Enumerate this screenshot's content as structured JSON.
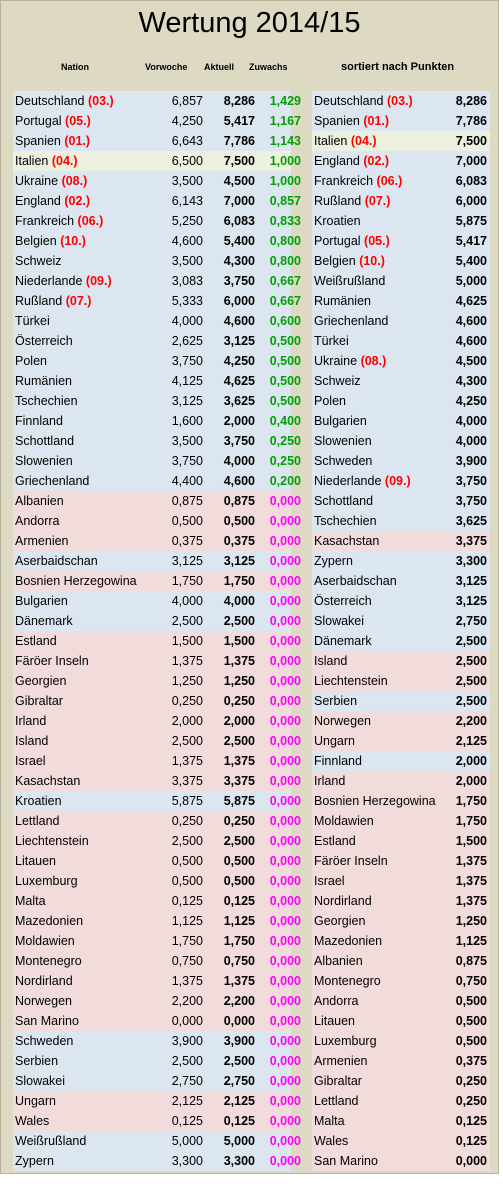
{
  "title": "Wertung 2014/15",
  "headers": {
    "nation": "Nation",
    "prev_week": "Vorwoche",
    "current": "Aktuell",
    "gain": "Zuwachs",
    "sorted": "sortiert nach Punkten"
  },
  "colors": {
    "blue": "#dce6f1",
    "pink": "#f2dcdb",
    "green": "#ebf1de",
    "rank": "#ff0000",
    "gain_positive": "#00a000",
    "gain_zero": "#ff00ff"
  },
  "left_table": [
    {
      "name": "Deutschland",
      "rank": "(03.)",
      "prev": "6,857",
      "cur": "8,286",
      "gain": "1,429",
      "bg": "blue"
    },
    {
      "name": "Portugal",
      "rank": "(05.)",
      "prev": "4,250",
      "cur": "5,417",
      "gain": "1,167",
      "bg": "blue"
    },
    {
      "name": "Spanien",
      "rank": "(01.)",
      "prev": "6,643",
      "cur": "7,786",
      "gain": "1,143",
      "bg": "blue"
    },
    {
      "name": "Italien",
      "rank": "(04.)",
      "prev": "6,500",
      "cur": "7,500",
      "gain": "1,000",
      "bg": "green"
    },
    {
      "name": "Ukraine",
      "rank": "(08.)",
      "prev": "3,500",
      "cur": "4,500",
      "gain": "1,000",
      "bg": "blue"
    },
    {
      "name": "England",
      "rank": "(02.)",
      "prev": "6,143",
      "cur": "7,000",
      "gain": "0,857",
      "bg": "blue"
    },
    {
      "name": "Frankreich",
      "rank": "(06.)",
      "prev": "5,250",
      "cur": "6,083",
      "gain": "0,833",
      "bg": "blue"
    },
    {
      "name": "Belgien",
      "rank": "(10.)",
      "prev": "4,600",
      "cur": "5,400",
      "gain": "0,800",
      "bg": "blue"
    },
    {
      "name": "Schweiz",
      "rank": "",
      "prev": "3,500",
      "cur": "4,300",
      "gain": "0,800",
      "bg": "blue"
    },
    {
      "name": "Niederlande",
      "rank": "(09.)",
      "prev": "3,083",
      "cur": "3,750",
      "gain": "0,667",
      "bg": "blue"
    },
    {
      "name": "Rußland",
      "rank": "(07.)",
      "prev": "5,333",
      "cur": "6,000",
      "gain": "0,667",
      "bg": "blue"
    },
    {
      "name": "Türkei",
      "rank": "",
      "prev": "4,000",
      "cur": "4,600",
      "gain": "0,600",
      "bg": "blue"
    },
    {
      "name": "Österreich",
      "rank": "",
      "prev": "2,625",
      "cur": "3,125",
      "gain": "0,500",
      "bg": "blue"
    },
    {
      "name": "Polen",
      "rank": "",
      "prev": "3,750",
      "cur": "4,250",
      "gain": "0,500",
      "bg": "blue"
    },
    {
      "name": "Rumänien",
      "rank": "",
      "prev": "4,125",
      "cur": "4,625",
      "gain": "0,500",
      "bg": "blue"
    },
    {
      "name": "Tschechien",
      "rank": "",
      "prev": "3,125",
      "cur": "3,625",
      "gain": "0,500",
      "bg": "blue"
    },
    {
      "name": "Finnland",
      "rank": "",
      "prev": "1,600",
      "cur": "2,000",
      "gain": "0,400",
      "bg": "blue"
    },
    {
      "name": "Schottland",
      "rank": "",
      "prev": "3,500",
      "cur": "3,750",
      "gain": "0,250",
      "bg": "blue"
    },
    {
      "name": "Slowenien",
      "rank": "",
      "prev": "3,750",
      "cur": "4,000",
      "gain": "0,250",
      "bg": "blue"
    },
    {
      "name": "Griechenland",
      "rank": "",
      "prev": "4,400",
      "cur": "4,600",
      "gain": "0,200",
      "bg": "blue"
    },
    {
      "name": "Albanien",
      "rank": "",
      "prev": "0,875",
      "cur": "0,875",
      "gain": "0,000",
      "bg": "pink"
    },
    {
      "name": "Andorra",
      "rank": "",
      "prev": "0,500",
      "cur": "0,500",
      "gain": "0,000",
      "bg": "pink"
    },
    {
      "name": "Armenien",
      "rank": "",
      "prev": "0,375",
      "cur": "0,375",
      "gain": "0,000",
      "bg": "pink"
    },
    {
      "name": "Aserbaidschan",
      "rank": "",
      "prev": "3,125",
      "cur": "3,125",
      "gain": "0,000",
      "bg": "blue"
    },
    {
      "name": "Bosnien Herzegowina",
      "rank": "",
      "prev": "1,750",
      "cur": "1,750",
      "gain": "0,000",
      "bg": "pink"
    },
    {
      "name": "Bulgarien",
      "rank": "",
      "prev": "4,000",
      "cur": "4,000",
      "gain": "0,000",
      "bg": "blue"
    },
    {
      "name": "Dänemark",
      "rank": "",
      "prev": "2,500",
      "cur": "2,500",
      "gain": "0,000",
      "bg": "blue"
    },
    {
      "name": "Estland",
      "rank": "",
      "prev": "1,500",
      "cur": "1,500",
      "gain": "0,000",
      "bg": "pink"
    },
    {
      "name": "Färöer Inseln",
      "rank": "",
      "prev": "1,375",
      "cur": "1,375",
      "gain": "0,000",
      "bg": "pink"
    },
    {
      "name": "Georgien",
      "rank": "",
      "prev": "1,250",
      "cur": "1,250",
      "gain": "0,000",
      "bg": "pink"
    },
    {
      "name": "Gibraltar",
      "rank": "",
      "prev": "0,250",
      "cur": "0,250",
      "gain": "0,000",
      "bg": "pink"
    },
    {
      "name": "Irland",
      "rank": "",
      "prev": "2,000",
      "cur": "2,000",
      "gain": "0,000",
      "bg": "pink"
    },
    {
      "name": "Island",
      "rank": "",
      "prev": "2,500",
      "cur": "2,500",
      "gain": "0,000",
      "bg": "pink"
    },
    {
      "name": "Israel",
      "rank": "",
      "prev": "1,375",
      "cur": "1,375",
      "gain": "0,000",
      "bg": "pink"
    },
    {
      "name": "Kasachstan",
      "rank": "",
      "prev": "3,375",
      "cur": "3,375",
      "gain": "0,000",
      "bg": "pink"
    },
    {
      "name": "Kroatien",
      "rank": "",
      "prev": "5,875",
      "cur": "5,875",
      "gain": "0,000",
      "bg": "blue"
    },
    {
      "name": "Lettland",
      "rank": "",
      "prev": "0,250",
      "cur": "0,250",
      "gain": "0,000",
      "bg": "pink"
    },
    {
      "name": "Liechtenstein",
      "rank": "",
      "prev": "2,500",
      "cur": "2,500",
      "gain": "0,000",
      "bg": "pink"
    },
    {
      "name": "Litauen",
      "rank": "",
      "prev": "0,500",
      "cur": "0,500",
      "gain": "0,000",
      "bg": "pink"
    },
    {
      "name": "Luxemburg",
      "rank": "",
      "prev": "0,500",
      "cur": "0,500",
      "gain": "0,000",
      "bg": "pink"
    },
    {
      "name": "Malta",
      "rank": "",
      "prev": "0,125",
      "cur": "0,125",
      "gain": "0,000",
      "bg": "pink"
    },
    {
      "name": "Mazedonien",
      "rank": "",
      "prev": "1,125",
      "cur": "1,125",
      "gain": "0,000",
      "bg": "pink"
    },
    {
      "name": "Moldawien",
      "rank": "",
      "prev": "1,750",
      "cur": "1,750",
      "gain": "0,000",
      "bg": "pink"
    },
    {
      "name": "Montenegro",
      "rank": "",
      "prev": "0,750",
      "cur": "0,750",
      "gain": "0,000",
      "bg": "pink"
    },
    {
      "name": "Nordirland",
      "rank": "",
      "prev": "1,375",
      "cur": "1,375",
      "gain": "0,000",
      "bg": "pink"
    },
    {
      "name": "Norwegen",
      "rank": "",
      "prev": "2,200",
      "cur": "2,200",
      "gain": "0,000",
      "bg": "pink"
    },
    {
      "name": "San Marino",
      "rank": "",
      "prev": "0,000",
      "cur": "0,000",
      "gain": "0,000",
      "bg": "pink"
    },
    {
      "name": "Schweden",
      "rank": "",
      "prev": "3,900",
      "cur": "3,900",
      "gain": "0,000",
      "bg": "blue"
    },
    {
      "name": "Serbien",
      "rank": "",
      "prev": "2,500",
      "cur": "2,500",
      "gain": "0,000",
      "bg": "blue"
    },
    {
      "name": "Slowakei",
      "rank": "",
      "prev": "2,750",
      "cur": "2,750",
      "gain": "0,000",
      "bg": "blue"
    },
    {
      "name": "Ungarn",
      "rank": "",
      "prev": "2,125",
      "cur": "2,125",
      "gain": "0,000",
      "bg": "pink"
    },
    {
      "name": "Wales",
      "rank": "",
      "prev": "0,125",
      "cur": "0,125",
      "gain": "0,000",
      "bg": "pink"
    },
    {
      "name": "Weißrußland",
      "rank": "",
      "prev": "5,000",
      "cur": "5,000",
      "gain": "0,000",
      "bg": "blue"
    },
    {
      "name": "Zypern",
      "rank": "",
      "prev": "3,300",
      "cur": "3,300",
      "gain": "0,000",
      "bg": "blue"
    }
  ],
  "right_table": [
    {
      "name": "Deutschland",
      "rank": "(03.)",
      "score": "8,286",
      "bg": "blue"
    },
    {
      "name": "Spanien",
      "rank": "(01.)",
      "score": "7,786",
      "bg": "blue"
    },
    {
      "name": "Italien",
      "rank": "(04.)",
      "score": "7,500",
      "bg": "green"
    },
    {
      "name": "England",
      "rank": "(02.)",
      "score": "7,000",
      "bg": "blue"
    },
    {
      "name": "Frankreich",
      "rank": "(06.)",
      "score": "6,083",
      "bg": "blue"
    },
    {
      "name": "Rußland",
      "rank": "(07.)",
      "score": "6,000",
      "bg": "blue"
    },
    {
      "name": "Kroatien",
      "rank": "",
      "score": "5,875",
      "bg": "blue"
    },
    {
      "name": "Portugal",
      "rank": "(05.)",
      "score": "5,417",
      "bg": "blue"
    },
    {
      "name": "Belgien",
      "rank": "(10.)",
      "score": "5,400",
      "bg": "blue"
    },
    {
      "name": "Weißrußland",
      "rank": "",
      "score": "5,000",
      "bg": "blue"
    },
    {
      "name": "Rumänien",
      "rank": "",
      "score": "4,625",
      "bg": "blue"
    },
    {
      "name": "Griechenland",
      "rank": "",
      "score": "4,600",
      "bg": "blue"
    },
    {
      "name": "Türkei",
      "rank": "",
      "score": "4,600",
      "bg": "blue"
    },
    {
      "name": "Ukraine",
      "rank": "(08.)",
      "score": "4,500",
      "bg": "blue"
    },
    {
      "name": "Schweiz",
      "rank": "",
      "score": "4,300",
      "bg": "blue"
    },
    {
      "name": "Polen",
      "rank": "",
      "score": "4,250",
      "bg": "blue"
    },
    {
      "name": "Bulgarien",
      "rank": "",
      "score": "4,000",
      "bg": "blue"
    },
    {
      "name": "Slowenien",
      "rank": "",
      "score": "4,000",
      "bg": "blue"
    },
    {
      "name": "Schweden",
      "rank": "",
      "score": "3,900",
      "bg": "blue"
    },
    {
      "name": "Niederlande",
      "rank": "(09.)",
      "score": "3,750",
      "bg": "blue"
    },
    {
      "name": "Schottland",
      "rank": "",
      "score": "3,750",
      "bg": "blue"
    },
    {
      "name": "Tschechien",
      "rank": "",
      "score": "3,625",
      "bg": "blue"
    },
    {
      "name": "Kasachstan",
      "rank": "",
      "score": "3,375",
      "bg": "pink"
    },
    {
      "name": "Zypern",
      "rank": "",
      "score": "3,300",
      "bg": "blue"
    },
    {
      "name": "Aserbaidschan",
      "rank": "",
      "score": "3,125",
      "bg": "blue"
    },
    {
      "name": "Österreich",
      "rank": "",
      "score": "3,125",
      "bg": "blue"
    },
    {
      "name": "Slowakei",
      "rank": "",
      "score": "2,750",
      "bg": "blue"
    },
    {
      "name": "Dänemark",
      "rank": "",
      "score": "2,500",
      "bg": "blue"
    },
    {
      "name": "Island",
      "rank": "",
      "score": "2,500",
      "bg": "pink"
    },
    {
      "name": "Liechtenstein",
      "rank": "",
      "score": "2,500",
      "bg": "pink"
    },
    {
      "name": "Serbien",
      "rank": "",
      "score": "2,500",
      "bg": "blue"
    },
    {
      "name": "Norwegen",
      "rank": "",
      "score": "2,200",
      "bg": "pink"
    },
    {
      "name": "Ungarn",
      "rank": "",
      "score": "2,125",
      "bg": "pink"
    },
    {
      "name": "Finnland",
      "rank": "",
      "score": "2,000",
      "bg": "blue"
    },
    {
      "name": "Irland",
      "rank": "",
      "score": "2,000",
      "bg": "pink"
    },
    {
      "name": "Bosnien Herzegowina",
      "rank": "",
      "score": "1,750",
      "bg": "pink"
    },
    {
      "name": "Moldawien",
      "rank": "",
      "score": "1,750",
      "bg": "pink"
    },
    {
      "name": "Estland",
      "rank": "",
      "score": "1,500",
      "bg": "pink"
    },
    {
      "name": "Färöer Inseln",
      "rank": "",
      "score": "1,375",
      "bg": "pink"
    },
    {
      "name": "Israel",
      "rank": "",
      "score": "1,375",
      "bg": "pink"
    },
    {
      "name": "Nordirland",
      "rank": "",
      "score": "1,375",
      "bg": "pink"
    },
    {
      "name": "Georgien",
      "rank": "",
      "score": "1,250",
      "bg": "pink"
    },
    {
      "name": "Mazedonien",
      "rank": "",
      "score": "1,125",
      "bg": "pink"
    },
    {
      "name": "Albanien",
      "rank": "",
      "score": "0,875",
      "bg": "pink"
    },
    {
      "name": "Montenegro",
      "rank": "",
      "score": "0,750",
      "bg": "pink"
    },
    {
      "name": "Andorra",
      "rank": "",
      "score": "0,500",
      "bg": "pink"
    },
    {
      "name": "Litauen",
      "rank": "",
      "score": "0,500",
      "bg": "pink"
    },
    {
      "name": "Luxemburg",
      "rank": "",
      "score": "0,500",
      "bg": "pink"
    },
    {
      "name": "Armenien",
      "rank": "",
      "score": "0,375",
      "bg": "pink"
    },
    {
      "name": "Gibraltar",
      "rank": "",
      "score": "0,250",
      "bg": "pink"
    },
    {
      "name": "Lettland",
      "rank": "",
      "score": "0,250",
      "bg": "pink"
    },
    {
      "name": "Malta",
      "rank": "",
      "score": "0,125",
      "bg": "pink"
    },
    {
      "name": "Wales",
      "rank": "",
      "score": "0,125",
      "bg": "pink"
    },
    {
      "name": "San Marino",
      "rank": "",
      "score": "0,000",
      "bg": "pink"
    }
  ]
}
